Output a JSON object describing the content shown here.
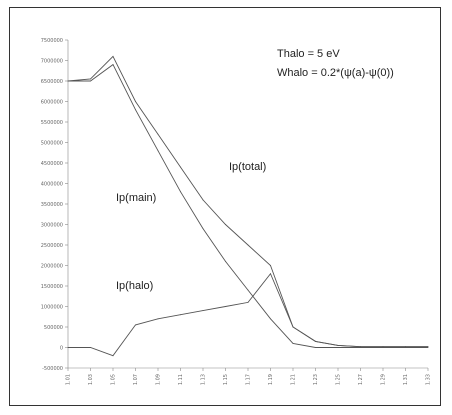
{
  "chart_data": {
    "type": "line",
    "x": [
      1,
      2,
      3,
      4,
      5,
      6,
      7,
      8,
      9,
      10,
      11,
      12,
      13,
      14,
      15,
      16,
      17
    ],
    "xlim": [
      1,
      17
    ],
    "ylim": [
      -500000,
      7500000
    ],
    "yticks": [
      -500000,
      0,
      500000,
      1000000,
      1500000,
      2000000,
      2500000,
      3000000,
      3500000,
      4000000,
      4500000,
      5000000,
      5500000,
      6000000,
      6500000,
      7000000,
      7500000
    ],
    "ytick_labels": [
      "-500000",
      "0",
      "500000",
      "1000000",
      "1500000",
      "2000000",
      "2500000",
      "3000000",
      "3500000",
      "4000000",
      "4500000",
      "5000000",
      "5500000",
      "6000000",
      "6500000",
      "7000000",
      "7500000"
    ],
    "xticks": [
      1,
      2,
      3,
      4,
      5,
      6,
      7,
      8,
      9,
      10,
      11,
      12,
      13,
      14,
      15,
      16,
      17
    ],
    "xtick_labels": [
      "1.01",
      "1.03",
      "1.05",
      "1.07",
      "1.09",
      "1.11",
      "1.13",
      "1.15",
      "1.17",
      "1.19",
      "1.21",
      "1.23",
      "1.25",
      "1.27",
      "1.29",
      "1.31",
      "1.33"
    ],
    "series": [
      {
        "name": "Ip(main)",
        "values": [
          6500000,
          6500000,
          6900000,
          5800000,
          4800000,
          3800000,
          2900000,
          2100000,
          1400000,
          700000,
          100000,
          0,
          0,
          0,
          0,
          0,
          0
        ],
        "color": "#555555"
      },
      {
        "name": "Ip(total)",
        "values": [
          6500000,
          6550000,
          7100000,
          6000000,
          5200000,
          4400000,
          3600000,
          3000000,
          2500000,
          2000000,
          500000,
          150000,
          50000,
          20000,
          20000,
          20000,
          20000
        ],
        "color": "#555555"
      },
      {
        "name": "Ip(halo)",
        "values": [
          0,
          0,
          -200000,
          550000,
          700000,
          800000,
          900000,
          1000000,
          1100000,
          1800000,
          500000,
          150000,
          50000,
          20000,
          20000,
          20000,
          20000
        ],
        "color": "#555555"
      }
    ],
    "annotations": {
      "thalo": "Thalo = 5 eV",
      "whalo": "Whalo = 0.2*(ψ(a)-ψ(0))",
      "label_main": "Ip(main)",
      "label_total": "Ip(total)",
      "label_halo": "Ip(halo)"
    }
  }
}
